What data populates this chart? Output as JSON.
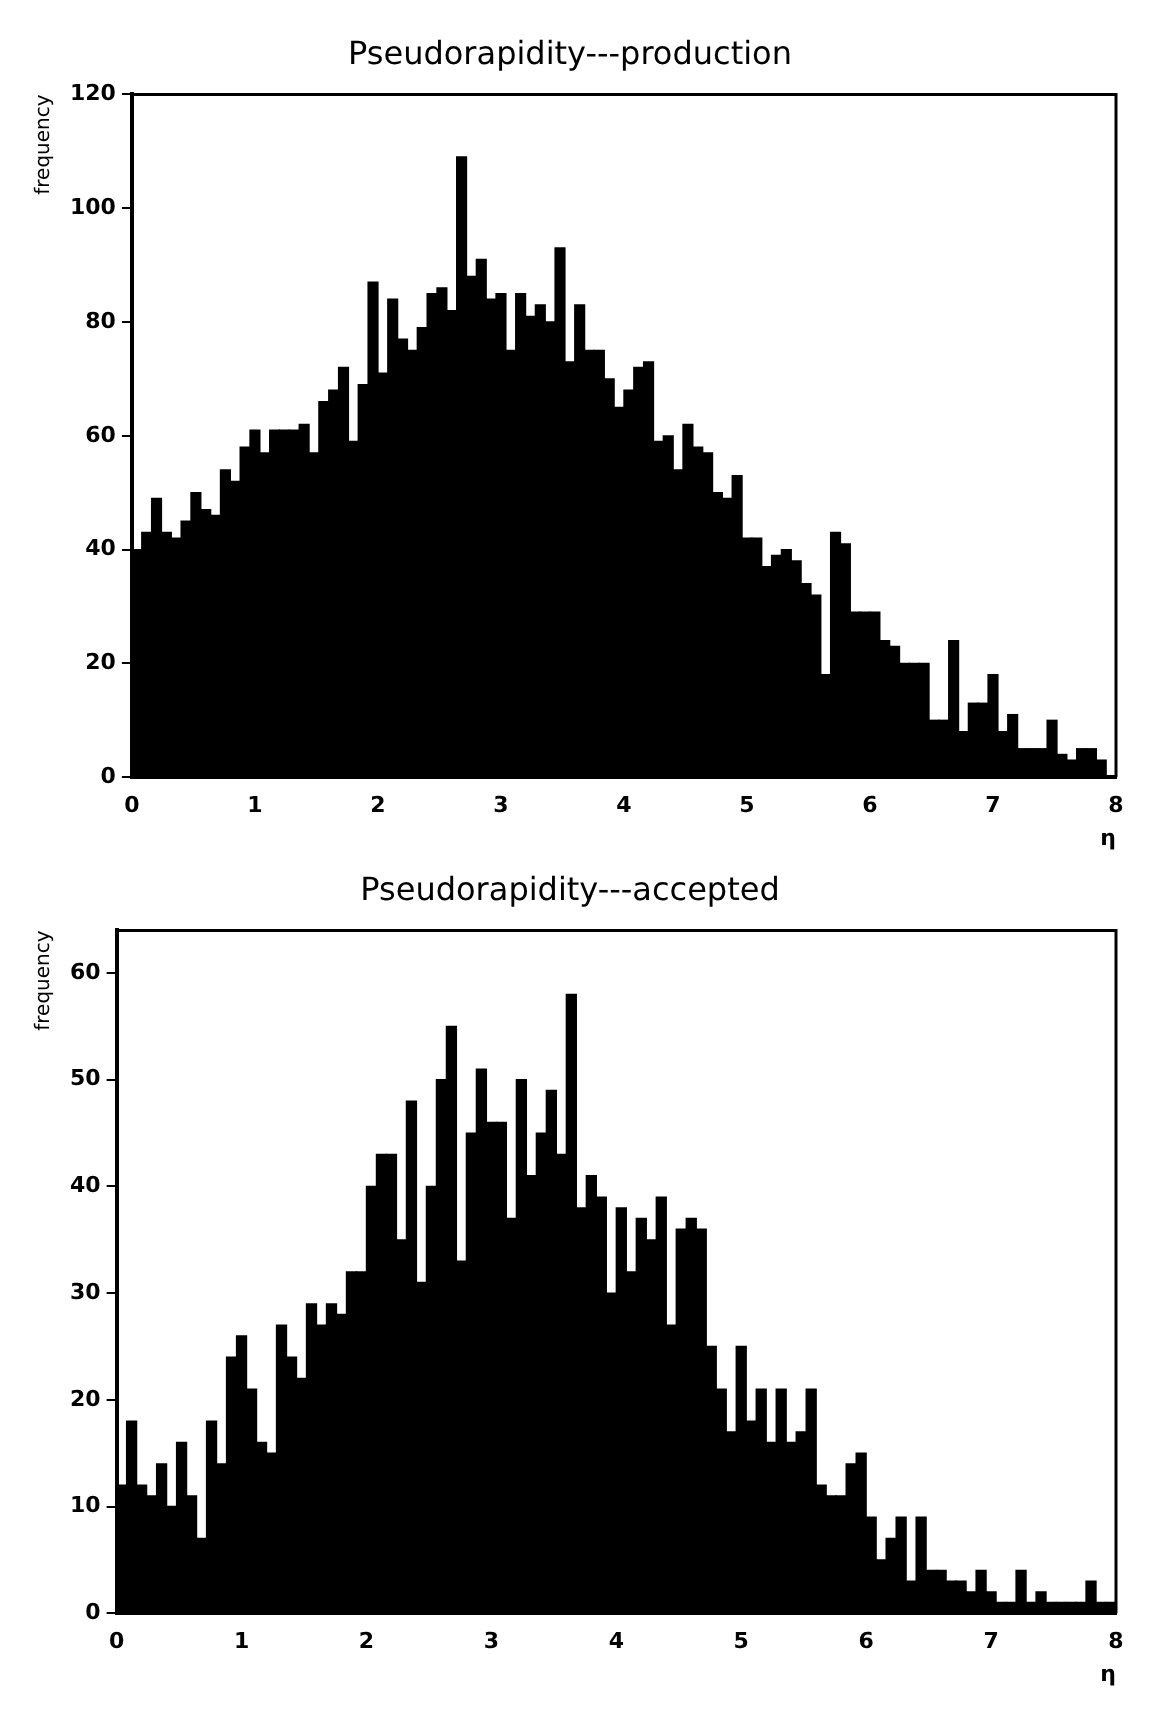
{
  "chart_data": [
    {
      "type": "histogram",
      "title": "Pseudorapidity---production",
      "xlabel": "η",
      "ylabel": "frequency",
      "color": "#000000",
      "bins": [
        0,
        0.08,
        0.16,
        0.24,
        0.32,
        0.4,
        0.48,
        0.56,
        0.64,
        0.72,
        0.8,
        0.88,
        0.96,
        1.04,
        1.12,
        1.2,
        1.28,
        1.36,
        1.44,
        1.52,
        1.6,
        1.68,
        1.76,
        1.84,
        1.92,
        2,
        2.08,
        2.16,
        2.24,
        2.32,
        2.4,
        2.48,
        2.56,
        2.64,
        2.72,
        2.8,
        2.88,
        2.96,
        3.04,
        3.12,
        3.2,
        3.28,
        3.36,
        3.44,
        3.52,
        3.6,
        3.68,
        3.76,
        3.84,
        3.92,
        4,
        4.08,
        4.16,
        4.24,
        4.32,
        4.4,
        4.48,
        4.56,
        4.64,
        4.72,
        4.8,
        4.88,
        4.96,
        5.04,
        5.12,
        5.2,
        5.28,
        5.36,
        5.44,
        5.52,
        5.6,
        5.68,
        5.76,
        5.84,
        5.92,
        6,
        6.08,
        6.16,
        6.24,
        6.32,
        6.4,
        6.48,
        6.56,
        6.64,
        6.72,
        6.8,
        6.88,
        6.96,
        7.04,
        7.12,
        7.2,
        7.28,
        7.36,
        7.44,
        7.52,
        7.6,
        7.68,
        7.76,
        7.84,
        7.92,
        8
      ],
      "values": [
        40,
        43,
        49,
        43,
        42,
        45,
        50,
        47,
        46,
        54,
        52,
        58,
        61,
        57,
        61,
        61,
        61,
        62,
        57,
        66,
        68,
        72,
        59,
        69,
        87,
        71,
        84,
        77,
        75,
        79,
        85,
        86,
        82,
        109,
        88,
        91,
        84,
        85,
        75,
        85,
        81,
        83,
        80,
        93,
        73,
        83,
        75,
        75,
        70,
        65,
        68,
        72,
        73,
        59,
        60,
        54,
        62,
        58,
        57,
        50,
        49,
        53,
        42,
        42,
        37,
        39,
        40,
        38,
        34,
        32,
        18,
        43,
        41,
        29,
        29,
        29,
        24,
        23,
        20,
        20,
        20,
        10,
        10,
        24,
        8,
        13,
        13,
        18,
        8,
        11,
        5,
        5,
        5,
        10,
        4,
        3,
        5,
        5,
        3,
        0
      ],
      "xlim": [
        0,
        8
      ],
      "xticks": [
        0,
        1,
        2,
        3,
        4,
        5,
        6,
        7,
        8
      ],
      "ylim": [
        0,
        120
      ],
      "yticks": [
        0,
        20,
        40,
        60,
        80,
        100,
        120
      ]
    },
    {
      "type": "histogram",
      "title": "Pseudorapidity---accepted",
      "xlabel": "η",
      "ylabel": "frequency",
      "color": "#000000",
      "bins": [
        0,
        0.08,
        0.16,
        0.24,
        0.32,
        0.4,
        0.48,
        0.56,
        0.64,
        0.72,
        0.8,
        0.88,
        0.96,
        1.04,
        1.12,
        1.2,
        1.28,
        1.36,
        1.44,
        1.52,
        1.6,
        1.68,
        1.76,
        1.84,
        1.92,
        2,
        2.08,
        2.16,
        2.24,
        2.32,
        2.4,
        2.48,
        2.56,
        2.64,
        2.72,
        2.8,
        2.88,
        2.96,
        3.04,
        3.12,
        3.2,
        3.28,
        3.36,
        3.44,
        3.52,
        3.6,
        3.68,
        3.76,
        3.84,
        3.92,
        4,
        4.08,
        4.16,
        4.24,
        4.32,
        4.4,
        4.48,
        4.56,
        4.64,
        4.72,
        4.8,
        4.88,
        4.96,
        5.04,
        5.12,
        5.2,
        5.28,
        5.36,
        5.44,
        5.52,
        5.6,
        5.68,
        5.76,
        5.84,
        5.92,
        6,
        6.08,
        6.16,
        6.24,
        6.32,
        6.4,
        6.48,
        6.56,
        6.64,
        6.72,
        6.8,
        6.88,
        6.96,
        7.04,
        7.12,
        7.2,
        7.28,
        7.36,
        7.44,
        7.52,
        7.6,
        7.68,
        7.76,
        7.84,
        7.92,
        8
      ],
      "values": [
        12,
        18,
        12,
        11,
        14,
        10,
        16,
        11,
        7,
        18,
        14,
        24,
        26,
        21,
        16,
        15,
        27,
        24,
        22,
        29,
        27,
        29,
        28,
        32,
        32,
        40,
        43,
        43,
        35,
        48,
        31,
        40,
        50,
        55,
        33,
        45,
        51,
        46,
        46,
        37,
        50,
        41,
        45,
        49,
        43,
        58,
        38,
        41,
        39,
        30,
        38,
        32,
        37,
        35,
        39,
        27,
        36,
        37,
        36,
        25,
        21,
        17,
        25,
        18,
        21,
        16,
        21,
        16,
        17,
        21,
        12,
        11,
        11,
        14,
        15,
        9,
        5,
        7,
        9,
        3,
        9,
        4,
        4,
        3,
        3,
        2,
        4,
        2,
        1,
        1,
        4,
        1,
        2,
        1,
        1,
        1,
        1,
        3,
        1,
        1
      ],
      "xlim": [
        0,
        8
      ],
      "xticks": [
        0,
        1,
        2,
        3,
        4,
        5,
        6,
        7,
        8
      ],
      "ylim": [
        0,
        64
      ],
      "yticks": [
        0,
        10,
        20,
        30,
        40,
        50,
        60
      ]
    }
  ]
}
